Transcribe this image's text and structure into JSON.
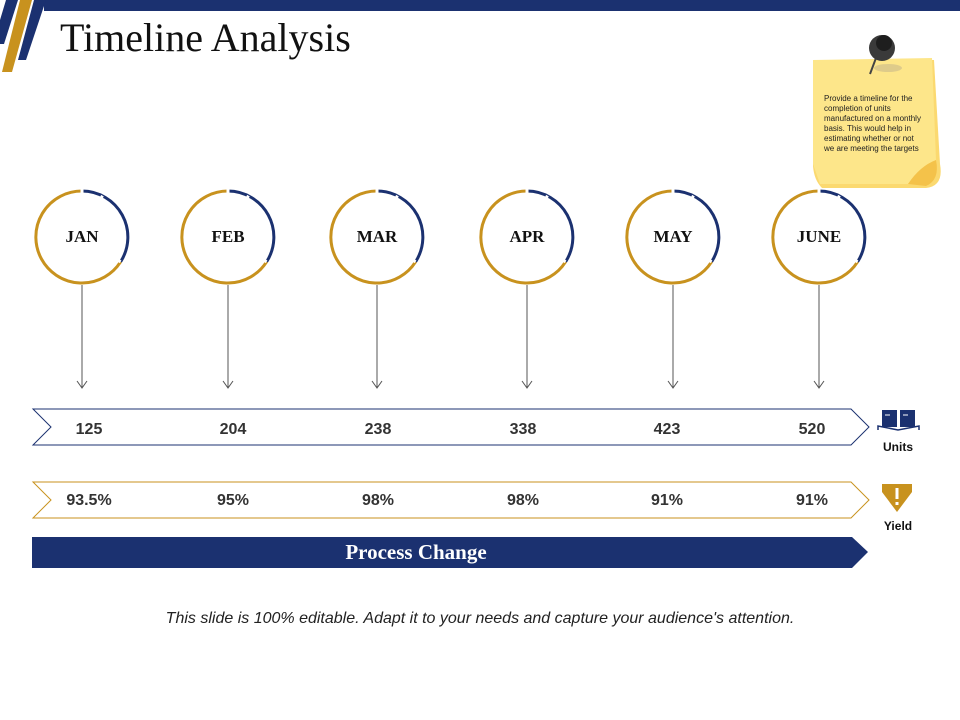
{
  "title": "Timeline Analysis",
  "note": {
    "text": "Provide a timeline for the completion of  units manufactured on a monthly basis. This would help in estimating whether or not we are meeting the targets"
  },
  "months": [
    "JAN",
    "FEB",
    "MAR",
    "APR",
    "MAY",
    "JUNE"
  ],
  "units": {
    "label": "Units",
    "values": [
      "125",
      "204",
      "238",
      "338",
      "423",
      "520"
    ]
  },
  "yield": {
    "label": "Yield",
    "values": [
      "93.5%",
      "95%",
      "98%",
      "98%",
      "91%",
      "91%"
    ]
  },
  "process_change": "Process Change",
  "footer": "This slide is 100% editable. Adapt it to your needs and capture your audience's attention.",
  "colors": {
    "navy": "#1b3170",
    "gold": "#c8921e",
    "note": "#fde68a"
  },
  "icons": {
    "units": "book-icon",
    "yield": "warning-icon",
    "note": "pushpin-icon"
  }
}
